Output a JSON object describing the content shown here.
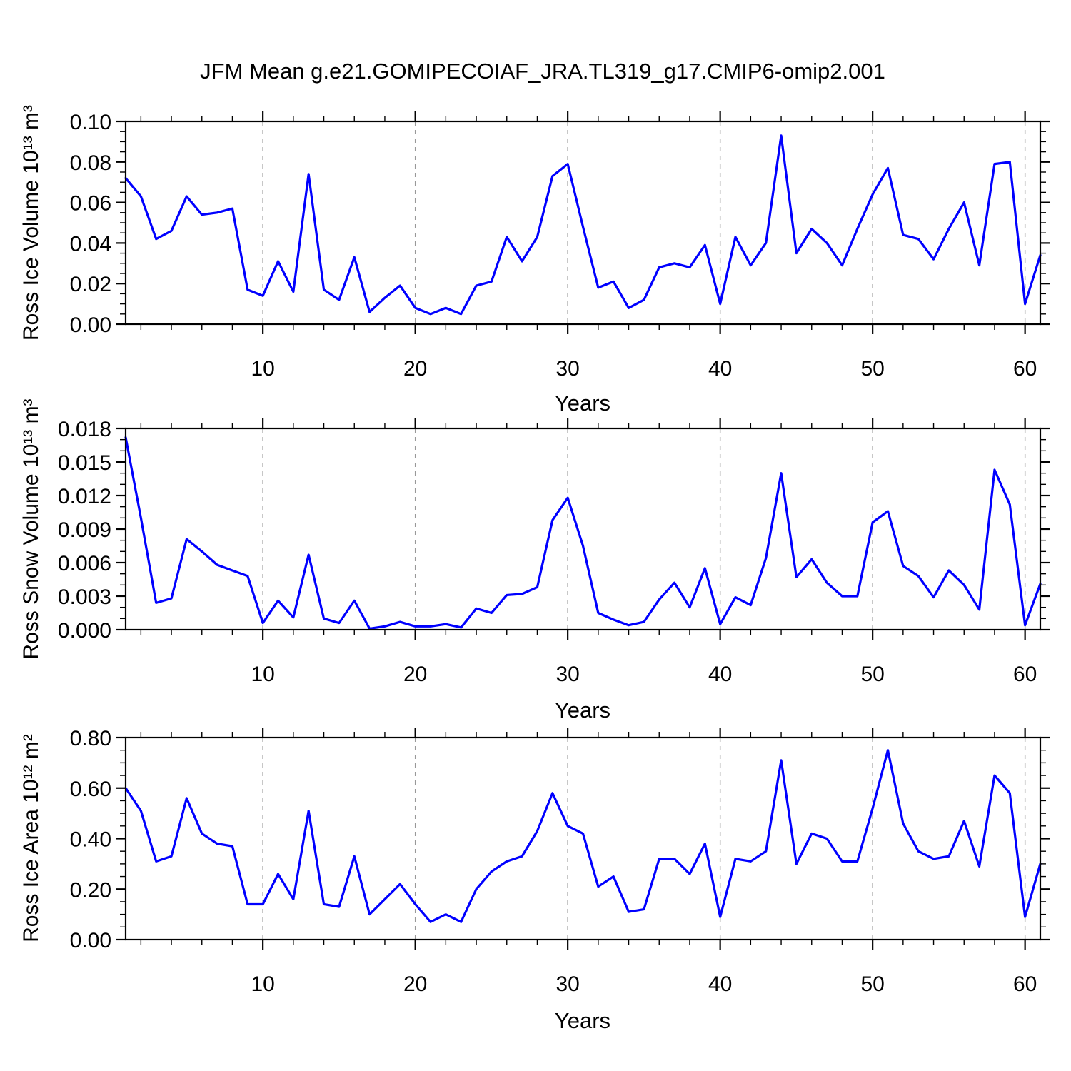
{
  "title": "JFM Mean g.e21.GOMIPECOIAF_JRA.TL319_g17.CMIP6-omip2.001",
  "colors": {
    "line": "#0000ff",
    "grid": "#999999",
    "frame": "#000000",
    "text": "#000000",
    "background": "#ffffff"
  },
  "chart_data": [
    {
      "name": "ross-ice-volume",
      "type": "line",
      "ylabel": "Ross Ice Volume 10¹³ m³",
      "xlabel": "Years",
      "line_color": "#0000ff",
      "grid": "vertical-dashed-at-major-xticks",
      "legend": "none",
      "xlim": [
        1,
        61
      ],
      "ylim": [
        0,
        0.1
      ],
      "x_start": 1,
      "x_step": 1,
      "xticks": [
        10,
        20,
        30,
        40,
        50,
        60
      ],
      "x_minor_step": 2,
      "yticks": [
        0,
        0.02,
        0.04,
        0.06,
        0.08,
        0.1
      ],
      "ytick_labels": [
        "0.00",
        "0.02",
        "0.04",
        "0.06",
        "0.08",
        "0.10"
      ],
      "y_minor_step": 0.005,
      "values": [
        0.072,
        0.063,
        0.042,
        0.046,
        0.063,
        0.054,
        0.055,
        0.057,
        0.017,
        0.014,
        0.031,
        0.016,
        0.074,
        0.017,
        0.012,
        0.033,
        0.006,
        0.013,
        0.019,
        0.008,
        0.005,
        0.008,
        0.005,
        0.019,
        0.021,
        0.043,
        0.031,
        0.043,
        0.073,
        0.079,
        0.048,
        0.018,
        0.021,
        0.008,
        0.012,
        0.028,
        0.03,
        0.028,
        0.039,
        0.01,
        0.043,
        0.029,
        0.04,
        0.093,
        0.035,
        0.047,
        0.04,
        0.029,
        0.047,
        0.064,
        0.077,
        0.044,
        0.042,
        0.032,
        0.047,
        0.06,
        0.029,
        0.079,
        0.08,
        0.01,
        0.034
      ]
    },
    {
      "name": "ross-snow-volume",
      "type": "line",
      "ylabel": "Ross Snow Volume 10¹³ m³",
      "xlabel": "Years",
      "line_color": "#0000ff",
      "grid": "vertical-dashed-at-major-xticks",
      "legend": "none",
      "xlim": [
        1,
        61
      ],
      "ylim": [
        0,
        0.018
      ],
      "x_start": 1,
      "x_step": 1,
      "xticks": [
        10,
        20,
        30,
        40,
        50,
        60
      ],
      "x_minor_step": 2,
      "yticks": [
        0,
        0.003,
        0.006,
        0.009,
        0.012,
        0.015,
        0.018
      ],
      "ytick_labels": [
        "0.000",
        "0.003",
        "0.006",
        "0.009",
        "0.012",
        "0.015",
        "0.018"
      ],
      "y_minor_step": 0.001,
      "values": [
        0.0172,
        0.01,
        0.0024,
        0.0028,
        0.0081,
        0.007,
        0.0058,
        0.0053,
        0.0048,
        0.0006,
        0.0026,
        0.0011,
        0.0067,
        0.001,
        0.0006,
        0.0026,
        0.0001,
        0.0003,
        0.0007,
        0.0003,
        0.0003,
        0.0005,
        0.0002,
        0.0019,
        0.0015,
        0.0031,
        0.0032,
        0.0038,
        0.0098,
        0.0118,
        0.0075,
        0.0015,
        0.0009,
        0.0004,
        0.0007,
        0.0027,
        0.0042,
        0.002,
        0.0055,
        0.0005,
        0.0029,
        0.0022,
        0.0064,
        0.014,
        0.0047,
        0.0063,
        0.0042,
        0.003,
        0.003,
        0.0096,
        0.0106,
        0.0057,
        0.0048,
        0.0029,
        0.0053,
        0.004,
        0.0018,
        0.0143,
        0.0112,
        0.0004,
        0.0041
      ]
    },
    {
      "name": "ross-ice-area",
      "type": "line",
      "ylabel": "Ross Ice Area 10¹² m²",
      "xlabel": "Years",
      "line_color": "#0000ff",
      "grid": "vertical-dashed-at-major-xticks",
      "legend": "none",
      "xlim": [
        1,
        61
      ],
      "ylim": [
        0,
        0.8
      ],
      "x_start": 1,
      "x_step": 1,
      "xticks": [
        10,
        20,
        30,
        40,
        50,
        60
      ],
      "x_minor_step": 2,
      "yticks": [
        0,
        0.2,
        0.4,
        0.6,
        0.8
      ],
      "ytick_labels": [
        "0.00",
        "0.20",
        "0.40",
        "0.60",
        "0.80"
      ],
      "y_minor_step": 0.05,
      "values": [
        0.6,
        0.51,
        0.31,
        0.33,
        0.56,
        0.42,
        0.38,
        0.37,
        0.14,
        0.14,
        0.26,
        0.16,
        0.51,
        0.14,
        0.13,
        0.33,
        0.1,
        0.16,
        0.22,
        0.14,
        0.07,
        0.1,
        0.07,
        0.2,
        0.27,
        0.31,
        0.33,
        0.43,
        0.58,
        0.45,
        0.42,
        0.21,
        0.25,
        0.11,
        0.12,
        0.32,
        0.32,
        0.26,
        0.38,
        0.09,
        0.32,
        0.31,
        0.35,
        0.71,
        0.3,
        0.42,
        0.4,
        0.31,
        0.31,
        0.52,
        0.75,
        0.46,
        0.35,
        0.32,
        0.33,
        0.47,
        0.29,
        0.65,
        0.58,
        0.09,
        0.3
      ]
    }
  ]
}
